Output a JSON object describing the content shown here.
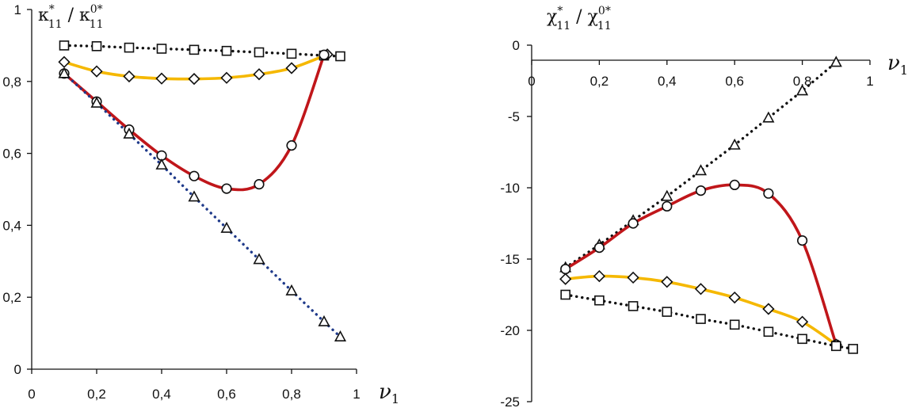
{
  "chart_data": [
    {
      "type": "line",
      "id": "left",
      "ylabel": {
        "base1": "κ",
        "sub1": "11",
        "sup1": "*",
        "sep": " / ",
        "base2": "κ",
        "sub2": "11",
        "sup2": "0*"
      },
      "xlabel": {
        "base": "ν",
        "sub": "1"
      },
      "xlim": [
        0,
        1
      ],
      "ylim": [
        0,
        1
      ],
      "xticks": [
        "0",
        "0,2",
        "0,4",
        "0,6",
        "0,8",
        "1"
      ],
      "xtick_values": [
        0,
        0.2,
        0.4,
        0.6,
        0.8,
        1
      ],
      "yticks": [
        "0",
        "0,2",
        "0,4",
        "0,6",
        "0,8",
        "1"
      ],
      "ytick_values": [
        0,
        0.2,
        0.4,
        0.6,
        0.8,
        1
      ],
      "series": [
        {
          "name": "squares",
          "marker": "square",
          "line": "dotted",
          "color": "#111111",
          "x": [
            0.1,
            0.2,
            0.3,
            0.4,
            0.5,
            0.6,
            0.7,
            0.8,
            0.9,
            0.95
          ],
          "y": [
            0.9,
            0.898,
            0.894,
            0.891,
            0.888,
            0.885,
            0.881,
            0.877,
            0.872,
            0.87
          ]
        },
        {
          "name": "diamonds",
          "marker": "diamond",
          "line": "solid",
          "color": "#f5b800",
          "x": [
            0.1,
            0.2,
            0.3,
            0.4,
            0.5,
            0.6,
            0.7,
            0.8,
            0.91
          ],
          "y": [
            0.854,
            0.828,
            0.814,
            0.808,
            0.807,
            0.81,
            0.82,
            0.837,
            0.875
          ]
        },
        {
          "name": "circles",
          "marker": "circle",
          "line": "solid",
          "color": "#c0161a",
          "x": [
            0.1,
            0.2,
            0.3,
            0.4,
            0.5,
            0.6,
            0.7,
            0.8,
            0.9
          ],
          "y": [
            0.822,
            0.744,
            0.666,
            0.594,
            0.537,
            0.502,
            0.514,
            0.622,
            0.874
          ]
        },
        {
          "name": "triangles",
          "marker": "triangle",
          "line": "dotted",
          "color": "#1f3a8a",
          "x": [
            0.1,
            0.2,
            0.3,
            0.4,
            0.5,
            0.6,
            0.7,
            0.8,
            0.9,
            0.95
          ],
          "y": [
            0.822,
            0.74,
            0.654,
            0.568,
            0.479,
            0.392,
            0.305,
            0.218,
            0.132,
            0.09
          ]
        }
      ]
    },
    {
      "type": "line",
      "id": "right",
      "ylabel": {
        "base1": "χ",
        "sub1": "11",
        "sup1": "*",
        "sep": " / ",
        "base2": "χ",
        "sub2": "11",
        "sup2": "0*"
      },
      "xlabel": {
        "base": "ν",
        "sub": "1"
      },
      "xlim": [
        0,
        1
      ],
      "ylim": [
        -25,
        0
      ],
      "xticks": [
        "0",
        "0,2",
        "0,4",
        "0,6",
        "0,8",
        "1"
      ],
      "xtick_values": [
        0,
        0.2,
        0.4,
        0.6,
        0.8,
        1
      ],
      "yticks": [
        "0",
        "-5",
        "-10",
        "-15",
        "-20",
        "-25"
      ],
      "ytick_values": [
        0,
        -5,
        -10,
        -15,
        -20,
        -25
      ],
      "series": [
        {
          "name": "triangles",
          "marker": "triangle",
          "line": "dotted",
          "color": "#111111",
          "x": [
            0.1,
            0.2,
            0.3,
            0.4,
            0.5,
            0.6,
            0.7,
            0.8,
            0.9
          ],
          "y": [
            -15.6,
            -14.0,
            -12.3,
            -10.6,
            -8.8,
            -7.0,
            -5.1,
            -3.2,
            -1.2
          ]
        },
        {
          "name": "circles",
          "marker": "circle",
          "line": "solid",
          "color": "#c0161a",
          "x": [
            0.1,
            0.2,
            0.3,
            0.4,
            0.5,
            0.6,
            0.7,
            0.8,
            0.9
          ],
          "y": [
            -15.7,
            -14.2,
            -12.5,
            -11.3,
            -10.2,
            -9.8,
            -10.4,
            -13.7,
            -21.0
          ]
        },
        {
          "name": "diamonds",
          "marker": "diamond",
          "line": "solid",
          "color": "#f5b800",
          "x": [
            0.1,
            0.2,
            0.3,
            0.4,
            0.5,
            0.6,
            0.7,
            0.8,
            0.9
          ],
          "y": [
            -16.4,
            -16.2,
            -16.3,
            -16.6,
            -17.1,
            -17.7,
            -18.5,
            -19.4,
            -21.0
          ]
        },
        {
          "name": "squares",
          "marker": "square",
          "line": "dotted",
          "color": "#111111",
          "x": [
            0.1,
            0.2,
            0.3,
            0.4,
            0.5,
            0.6,
            0.7,
            0.8,
            0.9,
            0.95
          ],
          "y": [
            -17.5,
            -17.9,
            -18.3,
            -18.7,
            -19.2,
            -19.6,
            -20.1,
            -20.6,
            -21.1,
            -21.3
          ]
        }
      ]
    }
  ]
}
